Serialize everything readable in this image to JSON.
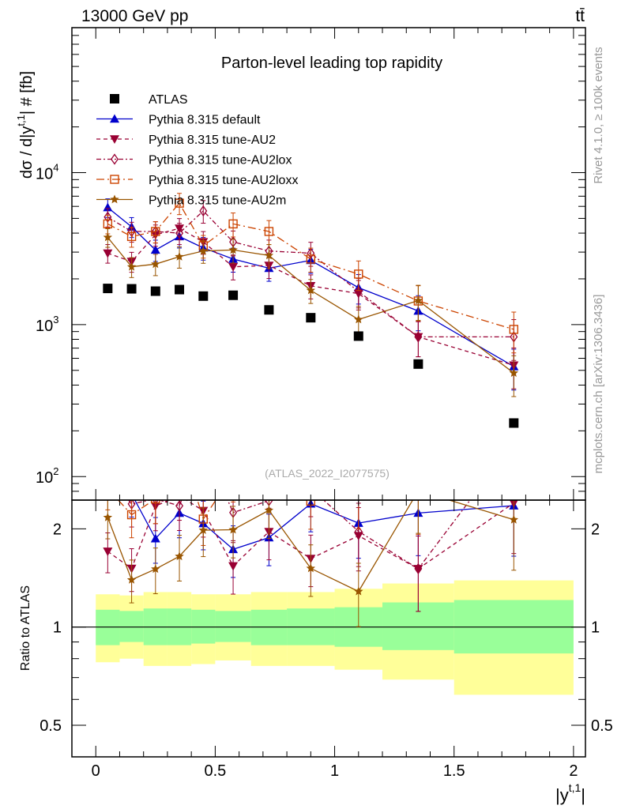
{
  "header": {
    "energy_label": "13000 GeV pp",
    "process_label": "tt̄"
  },
  "side_labels": {
    "rivet": "Rivet 4.1.0, ≥ 100k events",
    "source": "mcplots.cern.ch [arXiv:1306.3436]"
  },
  "chart_data": {
    "type": "line",
    "title": "Parton-level leading top rapidity",
    "analysis_label": "(ATLAS_2022_I2077575)",
    "ylabel": "dσ / d|y^t,1| # [fb]",
    "ylabel_parts": {
      "main": "dσ / d|y",
      "sup": "t,1",
      "tail": "| # [fb]"
    },
    "ratio_ylabel": "Ratio to ATLAS",
    "xlabel": "|y^t,1|",
    "xlabel_parts": {
      "main": "|y",
      "sup": "t,1",
      "tail": "|"
    },
    "x_range": [
      -0.1,
      2.05
    ],
    "ylim_log": [
      70,
      90000
    ],
    "ratio_ylim_log": [
      0.4,
      2.45
    ],
    "x_ticks": [
      "0",
      "0.5",
      "1",
      "1.5",
      "2"
    ],
    "y_ticks": [
      {
        "base": "10",
        "exp": "2"
      },
      {
        "base": "10",
        "exp": "3"
      },
      {
        "base": "10",
        "exp": "4"
      }
    ],
    "ratio_ticks": [
      "0.5",
      "1",
      "2"
    ],
    "x": [
      0.05,
      0.15,
      0.25,
      0.35,
      0.45,
      0.575,
      0.725,
      0.9,
      1.1,
      1.35,
      1.75
    ],
    "bin_edges": [
      0,
      0.1,
      0.2,
      0.3,
      0.4,
      0.5,
      0.65,
      0.8,
      1.0,
      1.2,
      1.5,
      2.0
    ],
    "band_green": [
      [
        0.88,
        1.13
      ],
      [
        0.9,
        1.12
      ],
      [
        0.88,
        1.14
      ],
      [
        0.88,
        1.14
      ],
      [
        0.89,
        1.13
      ],
      [
        0.9,
        1.12
      ],
      [
        0.88,
        1.13
      ],
      [
        0.88,
        1.14
      ],
      [
        0.87,
        1.15
      ],
      [
        0.85,
        1.19
      ],
      [
        0.83,
        1.21
      ]
    ],
    "band_yellow": [
      [
        0.78,
        1.26
      ],
      [
        0.8,
        1.25
      ],
      [
        0.76,
        1.28
      ],
      [
        0.76,
        1.28
      ],
      [
        0.77,
        1.26
      ],
      [
        0.79,
        1.26
      ],
      [
        0.76,
        1.28
      ],
      [
        0.76,
        1.28
      ],
      [
        0.74,
        1.31
      ],
      [
        0.69,
        1.36
      ],
      [
        0.62,
        1.39
      ]
    ],
    "series": [
      {
        "name": "ATLAS",
        "style": "data",
        "color": "#000000",
        "marker": "square-filled",
        "values": [
          1730,
          1720,
          1660,
          1700,
          1540,
          1560,
          1250,
          1110,
          840,
          550,
          225
        ]
      },
      {
        "name": "Pythia 8.315 default",
        "style": "solid",
        "color": "#0000cc",
        "marker": "triangle-up",
        "values": [
          5900,
          4400,
          3100,
          3800,
          3200,
          2700,
          2350,
          2650,
          1750,
          1230,
          530
        ],
        "errors": [
          0.14,
          0.15,
          0.16,
          0.16,
          0.17,
          0.18,
          0.18,
          0.18,
          0.22,
          0.26,
          0.3
        ]
      },
      {
        "name": "Pythia 8.315 tune-AU2",
        "style": "dash",
        "color": "#990033",
        "marker": "triangle-down",
        "values": [
          2950,
          2600,
          3900,
          4300,
          3500,
          2400,
          2450,
          1800,
          1600,
          830,
          540
        ],
        "errors": [
          0.14,
          0.15,
          0.16,
          0.16,
          0.17,
          0.18,
          0.18,
          0.18,
          0.22,
          0.26,
          0.3
        ]
      },
      {
        "name": "Pythia 8.315 tune-AU2lox",
        "style": "dashdot",
        "color": "#990033",
        "marker": "diamond",
        "values": [
          5100,
          4100,
          4100,
          4000,
          5600,
          3500,
          3050,
          2950,
          1650,
          830,
          830
        ],
        "errors": [
          0.14,
          0.15,
          0.16,
          0.16,
          0.17,
          0.18,
          0.18,
          0.18,
          0.22,
          0.26,
          0.3
        ]
      },
      {
        "name": "Pythia 8.315 tune-AU2loxx",
        "style": "longdashdot",
        "color": "#cc4400",
        "marker": "square-open",
        "values": [
          4600,
          3800,
          4100,
          6300,
          3300,
          4600,
          4100,
          2700,
          2150,
          1430,
          930
        ],
        "errors": [
          0.14,
          0.15,
          0.16,
          0.16,
          0.17,
          0.18,
          0.18,
          0.18,
          0.22,
          0.26,
          0.3
        ]
      },
      {
        "name": "Pythia 8.315 tune-AU2m",
        "style": "solid",
        "color": "#995500",
        "marker": "star",
        "values": [
          3750,
          2400,
          2500,
          2800,
          3050,
          3100,
          2850,
          1680,
          1080,
          1440,
          480
        ],
        "errors": [
          0.14,
          0.15,
          0.16,
          0.16,
          0.17,
          0.18,
          0.18,
          0.18,
          0.22,
          0.26,
          0.3
        ]
      }
    ]
  }
}
